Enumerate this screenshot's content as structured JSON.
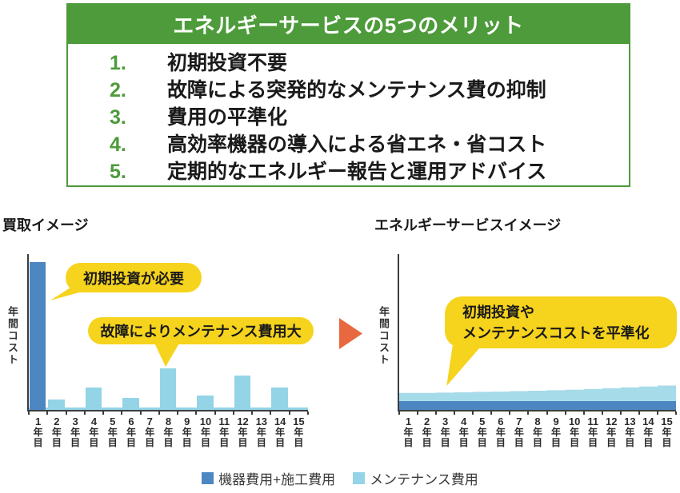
{
  "merits_box": {
    "title": "エネルギーサービスの5つのメリット",
    "items": [
      {
        "num": "1.",
        "text": "初期投資不要"
      },
      {
        "num": "2.",
        "text": "故障による突発的なメンテナンス費の抑制"
      },
      {
        "num": "3.",
        "text": "費用の平準化"
      },
      {
        "num": "4.",
        "text": "高効率機器の導入による省エネ・省コスト"
      },
      {
        "num": "5.",
        "text": "定期的なエネルギー報告と運用アドバイス"
      }
    ]
  },
  "colors": {
    "green": "#4d9b3a",
    "dark_blue": "#4d87c2",
    "light_blue": "#93d4e7",
    "light_blue_area": "#a6dbe9",
    "yellow": "#f6d31c",
    "arrow_orange": "#e8693f",
    "axis": "#3c3c3c",
    "text_dark": "#1a1a1a"
  },
  "charts": {
    "left_title": "買取イメージ",
    "right_title": "エネルギーサービスイメージ",
    "ylabel": "年間コスト",
    "year_suffix": [
      "年",
      "目"
    ]
  },
  "callouts": {
    "initial_investment": "初期投資が必要",
    "maintenance_large": "故障によりメンテナンス費用大",
    "leveling_line1": "初期投資や",
    "leveling_line2": "メンテナンスコストを平準化"
  },
  "legend": {
    "items": [
      {
        "label": "機器費用+施工費用",
        "color": "#4d87c2"
      },
      {
        "label": "メンテナンス費用",
        "color": "#93d4e7"
      }
    ]
  },
  "chart_data": [
    {
      "type": "bar",
      "title": "買取イメージ",
      "ylabel": "年間コスト",
      "xlabel": "",
      "categories": [
        "1年目",
        "2年目",
        "3年目",
        "4年目",
        "5年目",
        "6年目",
        "7年目",
        "8年目",
        "9年目",
        "10年目",
        "11年目",
        "12年目",
        "13年目",
        "14年目",
        "15年目"
      ],
      "series": [
        {
          "name": "機器費用+施工費用",
          "values": [
            100,
            0,
            0,
            0,
            0,
            0,
            0,
            0,
            0,
            0,
            0,
            0,
            0,
            0,
            0
          ]
        },
        {
          "name": "メンテナンス費用",
          "values": [
            0,
            7,
            1.5,
            15,
            1.5,
            8,
            1.5,
            28,
            1.5,
            10,
            1.5,
            23,
            1.5,
            15,
            1.5
          ]
        }
      ],
      "ylim": [
        0,
        110
      ],
      "value_units": "relative annual cost (no numeric axis shown; year-1 initial investment = 100)",
      "grid": false,
      "legend_position": "bottom",
      "annotations": [
        "初期投資が必要 → year 1 bar",
        "故障によりメンテナンス費用大 → year 8 bar"
      ]
    },
    {
      "type": "area",
      "title": "エネルギーサービスイメージ",
      "ylabel": "年間コスト",
      "xlabel": "",
      "categories": [
        "1年目",
        "2年目",
        "3年目",
        "4年目",
        "5年目",
        "6年目",
        "7年目",
        "8年目",
        "9年目",
        "10年目",
        "11年目",
        "12年目",
        "13年目",
        "14年目",
        "15年目"
      ],
      "series": [
        {
          "name": "機器費用+施工費用",
          "values": [
            6,
            6,
            6,
            6,
            6,
            6,
            6,
            6,
            6,
            6,
            6,
            6,
            6,
            6,
            6
          ]
        },
        {
          "name": "メンテナンス費用",
          "values": [
            5.5,
            5.5,
            5.7,
            5.9,
            6.2,
            6.4,
            6.7,
            7.0,
            7.3,
            7.6,
            8.1,
            8.6,
            9.2,
            9.8,
            10.5
          ]
        }
      ],
      "ylim": [
        0,
        110
      ],
      "value_units": "relative annual cost (same scale as left chart)",
      "grid": false,
      "legend_position": "bottom",
      "annotations": [
        "初期投資やメンテナンスコストを平準化 → flat stacked area"
      ]
    }
  ]
}
